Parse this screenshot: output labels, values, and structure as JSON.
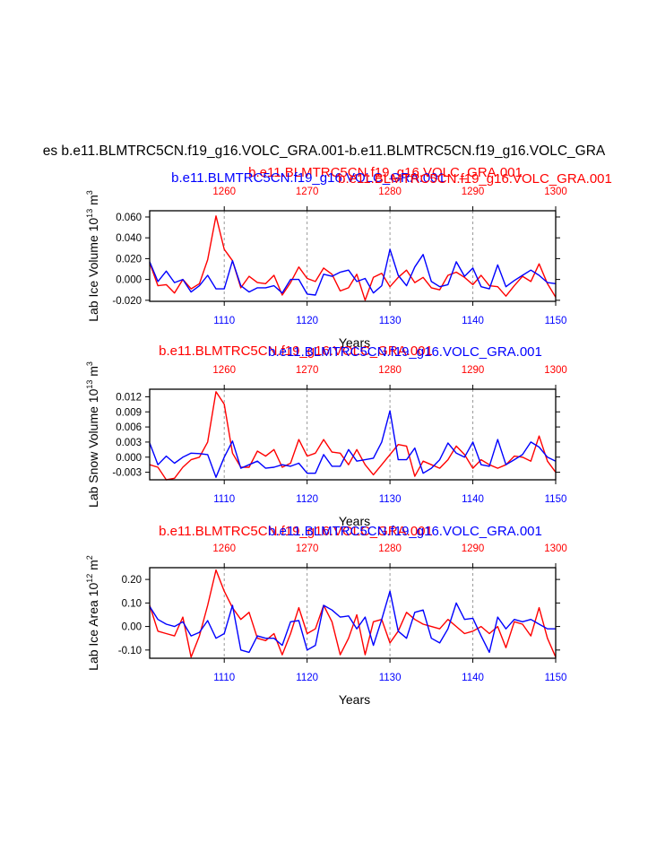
{
  "figure": {
    "main_title": "es b.e11.BLMTRC5CN.f19_g16.VOLC_GRA.001-b.e11.BLMTRC5CN.f19_g16.VOLC_GRA",
    "colors": {
      "red_series": "#ff0000",
      "blue_series": "#0000ff",
      "axis": "#000000",
      "grid": "#999999"
    }
  },
  "chart_data": [
    {
      "type": "line",
      "panel": "ice-volume",
      "title_red": "b.e11.BLMTRC5CN.f19_g16.VOLC_GRA.001",
      "title_blue": "b.e11.BLMTRC5CN.f19_g16.VOLC_GRA.001",
      "title_red_overlap": "b.e11.BLMTRC5CN.f19_g16.VOLC_GRA.001",
      "ylabel": "Lab Ice Volume 10",
      "ylabel_exp": "13",
      "ylabel_unit": " m",
      "ylabel_unit_exp": "3",
      "xlabel": "Years",
      "xlim": [
        1101,
        1150
      ],
      "ylim": [
        -0.021,
        0.066
      ],
      "yticks": [
        -0.02,
        0.0,
        0.02,
        0.04,
        0.06
      ],
      "ytick_labels": [
        "-0.020",
        "0.000",
        "0.020",
        "0.040",
        "0.060"
      ],
      "bottom_ticks": [
        1110,
        1120,
        1130,
        1140,
        1150
      ],
      "bottom_tick_labels": [
        "1110",
        "1120",
        "1130",
        "1140",
        "1150"
      ],
      "top_ticks": [
        1110,
        1120,
        1130,
        1140,
        1150
      ],
      "top_tick_labels": [
        "1260",
        "1270",
        "1280",
        "1290",
        "1300"
      ],
      "gridlines_at": [
        1110,
        1120,
        1130,
        1140
      ],
      "x": [
        1101,
        1102,
        1103,
        1104,
        1105,
        1106,
        1107,
        1108,
        1109,
        1110,
        1111,
        1112,
        1113,
        1114,
        1115,
        1116,
        1117,
        1118,
        1119,
        1120,
        1121,
        1122,
        1123,
        1124,
        1125,
        1126,
        1127,
        1128,
        1129,
        1130,
        1131,
        1132,
        1133,
        1134,
        1135,
        1136,
        1137,
        1138,
        1139,
        1140,
        1141,
        1142,
        1143,
        1144,
        1145,
        1146,
        1147,
        1148,
        1149,
        1150
      ],
      "series": [
        {
          "name": "b.e11.BLMTRC5CN.f19_g16.VOLC_GRA.001",
          "color": "#0000ff",
          "values": [
            0.017,
            -0.002,
            0.008,
            -0.003,
            0.0,
            -0.012,
            -0.006,
            0.004,
            -0.009,
            -0.009,
            0.018,
            -0.006,
            -0.012,
            -0.008,
            -0.008,
            -0.006,
            -0.013,
            0.0,
            0.0,
            -0.014,
            -0.015,
            0.005,
            0.003,
            0.007,
            0.009,
            -0.002,
            0.001,
            -0.013,
            -0.006,
            0.029,
            0.004,
            -0.006,
            0.012,
            0.024,
            -0.002,
            -0.007,
            -0.005,
            0.017,
            0.003,
            0.011,
            -0.007,
            -0.009,
            0.014,
            -0.007,
            -0.001,
            0.004,
            0.009,
            0.004,
            -0.003,
            -0.004
          ]
        },
        {
          "name": "b.e11.BLMTRC5CN.f19_g16.VOLC_GRA.001",
          "color": "#ff0000",
          "values": [
            0.016,
            -0.006,
            -0.005,
            -0.013,
            0.0,
            -0.009,
            -0.004,
            0.019,
            0.061,
            0.029,
            0.018,
            -0.008,
            0.003,
            -0.003,
            -0.004,
            0.004,
            -0.015,
            -0.003,
            0.012,
            0.001,
            -0.002,
            0.011,
            0.005,
            -0.011,
            -0.008,
            0.005,
            -0.02,
            0.002,
            0.006,
            -0.007,
            0.002,
            0.009,
            -0.003,
            0.002,
            -0.008,
            -0.01,
            0.004,
            0.007,
            0.002,
            -0.005,
            0.004,
            -0.006,
            -0.007,
            -0.016,
            -0.006,
            0.003,
            -0.002,
            0.015,
            -0.004,
            -0.017
          ]
        }
      ]
    },
    {
      "type": "line",
      "panel": "snow-volume",
      "title_red": "b.e11.BLMTRC5CN.f19_g16.VOLC_GRA.001",
      "title_blue": "b.e11.BLMTRC5CN.f19_g16.VOLC_GRA.001",
      "ylabel": "Lab Snow Volume 10",
      "ylabel_exp": "13",
      "ylabel_unit": " m",
      "ylabel_unit_exp": "3",
      "xlabel": "Years",
      "xlim": [
        1101,
        1150
      ],
      "ylim": [
        -0.0045,
        0.0135
      ],
      "yticks": [
        -0.003,
        0.0,
        0.003,
        0.006,
        0.009,
        0.012
      ],
      "ytick_labels": [
        "-0.003",
        "0.000",
        "0.003",
        "0.006",
        "0.009",
        "0.012"
      ],
      "bottom_ticks": [
        1110,
        1120,
        1130,
        1140,
        1150
      ],
      "bottom_tick_labels": [
        "1110",
        "1120",
        "1130",
        "1140",
        "1150"
      ],
      "top_ticks": [
        1110,
        1120,
        1130,
        1140,
        1150
      ],
      "top_tick_labels": [
        "1260",
        "1270",
        "1280",
        "1290",
        "1300"
      ],
      "gridlines_at": [
        1110,
        1120,
        1130,
        1140
      ],
      "x": [
        1101,
        1102,
        1103,
        1104,
        1105,
        1106,
        1107,
        1108,
        1109,
        1110,
        1111,
        1112,
        1113,
        1114,
        1115,
        1116,
        1117,
        1118,
        1119,
        1120,
        1121,
        1122,
        1123,
        1124,
        1125,
        1126,
        1127,
        1128,
        1129,
        1130,
        1131,
        1132,
        1133,
        1134,
        1135,
        1136,
        1137,
        1138,
        1139,
        1140,
        1141,
        1142,
        1143,
        1144,
        1145,
        1146,
        1147,
        1148,
        1149,
        1150
      ],
      "series": [
        {
          "name": "b.e11.BLMTRC5CN.f19_g16.VOLC_GRA.001",
          "color": "#0000ff",
          "values": [
            0.0028,
            -0.0015,
            0.0002,
            -0.0012,
            0.0,
            0.0008,
            0.0007,
            0.0005,
            -0.004,
            0.0,
            0.0032,
            -0.0022,
            -0.0015,
            -0.0008,
            -0.0022,
            -0.002,
            -0.0015,
            -0.0018,
            -0.0012,
            -0.0032,
            -0.0032,
            0.0005,
            -0.0018,
            -0.0018,
            0.0015,
            -0.0008,
            -0.0005,
            -0.0002,
            0.003,
            0.0092,
            -0.0005,
            -0.0005,
            0.0018,
            -0.0032,
            -0.0022,
            -0.0005,
            0.0028,
            0.0008,
            0.0,
            0.003,
            -0.0015,
            -0.0018,
            0.0035,
            -0.0015,
            -0.0005,
            0.0005,
            0.003,
            0.002,
            0.0,
            -0.0008
          ]
        },
        {
          "name": "b.e11.BLMTRC5CN.f19_g16.VOLC_GRA.001",
          "color": "#ff0000",
          "values": [
            -0.0015,
            -0.002,
            -0.0045,
            -0.0042,
            -0.002,
            -0.0005,
            0.0,
            0.003,
            0.013,
            0.0105,
            0.0008,
            -0.002,
            -0.002,
            0.0012,
            0.0002,
            0.0015,
            -0.002,
            -0.0012,
            0.0035,
            0.0002,
            0.0008,
            0.0035,
            0.001,
            0.0008,
            -0.0015,
            0.0015,
            -0.0015,
            -0.0035,
            -0.0015,
            0.0005,
            0.0025,
            0.0022,
            -0.0038,
            -0.0008,
            -0.0015,
            -0.0022,
            -0.0005,
            0.0022,
            0.0005,
            -0.0022,
            -0.0005,
            -0.0015,
            -0.0022,
            -0.0015,
            0.0002,
            0.0,
            -0.0008,
            0.0042,
            -0.0008,
            -0.003
          ]
        }
      ]
    },
    {
      "type": "line",
      "panel": "ice-area",
      "title_red": "b.e11.BLMTRC5CN.f19_g16.VOLC_GRA.001",
      "title_blue": "b.e11.BLMTRC5CN.f19_g16.VOLC_GRA.001",
      "ylabel": "Lab Ice Area 10",
      "ylabel_exp": "12",
      "ylabel_unit": " m",
      "ylabel_unit_exp": "2",
      "xlabel": "Years",
      "xlim": [
        1101,
        1150
      ],
      "ylim": [
        -0.135,
        0.25
      ],
      "yticks": [
        -0.1,
        0.0,
        0.1,
        0.2
      ],
      "ytick_labels": [
        "-0.10",
        "0.00",
        "0.10",
        "0.20"
      ],
      "bottom_ticks": [
        1110,
        1120,
        1130,
        1140,
        1150
      ],
      "bottom_tick_labels": [
        "1110",
        "1120",
        "1130",
        "1140",
        "1150"
      ],
      "top_ticks": [
        1110,
        1120,
        1130,
        1140,
        1150
      ],
      "top_tick_labels": [
        "1260",
        "1270",
        "1280",
        "1290",
        "1300"
      ],
      "gridlines_at": [
        1110,
        1120,
        1130,
        1140
      ],
      "x": [
        1101,
        1102,
        1103,
        1104,
        1105,
        1106,
        1107,
        1108,
        1109,
        1110,
        1111,
        1112,
        1113,
        1114,
        1115,
        1116,
        1117,
        1118,
        1119,
        1120,
        1121,
        1122,
        1123,
        1124,
        1125,
        1126,
        1127,
        1128,
        1129,
        1130,
        1131,
        1132,
        1133,
        1134,
        1135,
        1136,
        1137,
        1138,
        1139,
        1140,
        1141,
        1142,
        1143,
        1144,
        1145,
        1146,
        1147,
        1148,
        1149,
        1150
      ],
      "series": [
        {
          "name": "b.e11.BLMTRC5CN.f19_g16.VOLC_GRA.001",
          "color": "#0000ff",
          "values": [
            0.085,
            0.03,
            0.01,
            0.0,
            0.02,
            -0.04,
            -0.025,
            0.025,
            -0.05,
            -0.03,
            0.09,
            -0.1,
            -0.11,
            -0.04,
            -0.05,
            -0.05,
            -0.08,
            0.02,
            0.025,
            -0.1,
            -0.08,
            0.09,
            0.07,
            0.04,
            0.045,
            -0.01,
            0.04,
            -0.08,
            0.03,
            0.15,
            -0.02,
            -0.05,
            0.06,
            0.07,
            -0.05,
            -0.07,
            -0.01,
            0.1,
            0.03,
            0.035,
            -0.04,
            -0.11,
            0.04,
            -0.01,
            0.03,
            0.02,
            0.03,
            0.01,
            -0.01,
            -0.01
          ]
        },
        {
          "name": "b.e11.BLMTRC5CN.f19_g16.VOLC_GRA.001",
          "color": "#ff0000",
          "values": [
            0.09,
            -0.02,
            -0.03,
            -0.04,
            0.04,
            -0.13,
            -0.04,
            0.09,
            0.24,
            0.15,
            0.08,
            0.03,
            0.06,
            -0.05,
            -0.06,
            -0.03,
            -0.12,
            -0.03,
            0.08,
            -0.03,
            -0.01,
            0.09,
            0.02,
            -0.12,
            -0.05,
            0.05,
            -0.12,
            0.02,
            0.03,
            -0.07,
            -0.02,
            0.06,
            0.03,
            0.01,
            0.0,
            -0.01,
            0.03,
            0.0,
            -0.03,
            -0.02,
            0.0,
            -0.03,
            0.0,
            -0.09,
            0.02,
            0.01,
            -0.04,
            0.08,
            -0.05,
            -0.13
          ]
        }
      ]
    }
  ]
}
